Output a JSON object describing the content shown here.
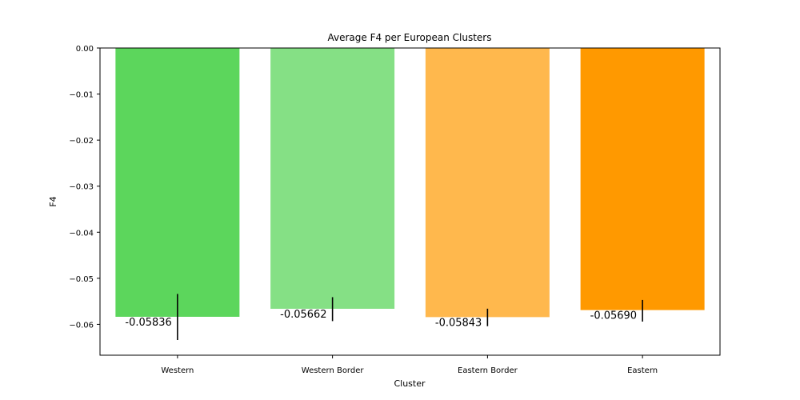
{
  "chart_data": {
    "type": "bar",
    "title": "Average F4 per European Clusters",
    "xlabel": "Cluster",
    "ylabel": "F4",
    "categories": [
      "Western",
      "Western Border",
      "Eastern Border",
      "Eastern"
    ],
    "values": [
      -0.05836,
      -0.05662,
      -0.05843,
      -0.0569
    ],
    "value_labels": [
      "-0.05836",
      "-0.05662",
      "-0.05843",
      "-0.05690"
    ],
    "error_low": [
      -0.0634,
      -0.0593,
      -0.0604,
      -0.0594
    ],
    "error_high": [
      -0.0534,
      -0.0541,
      -0.0566,
      -0.0547
    ],
    "colors": [
      "#5cd65c",
      "#85e085",
      "#ffb84d",
      "#ff9900"
    ],
    "ylim": [
      -0.0667,
      0.0
    ],
    "yticks": [
      0.0,
      -0.01,
      -0.02,
      -0.03,
      -0.04,
      -0.05,
      -0.06
    ],
    "ytick_labels": [
      "0.00",
      "−0.01",
      "−0.02",
      "−0.03",
      "−0.04",
      "−0.05",
      "−0.06"
    ],
    "grid": false,
    "legend": "none"
  }
}
